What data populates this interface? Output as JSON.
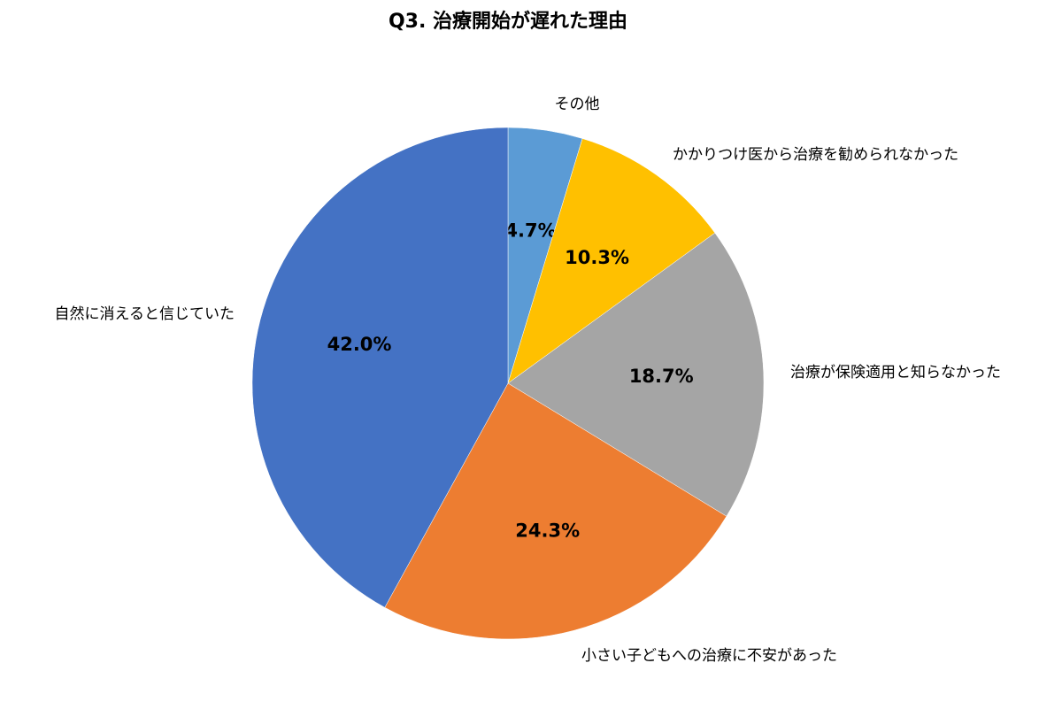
{
  "chart_data": {
    "type": "pie",
    "title": "Q3. 治療開始が遅れた理由",
    "categories": [
      "その他",
      "かかりつけ医から治療を勧められなかった",
      "治療が保険適用と知らなかった",
      "小さい子どもへの治療に不安があった",
      "自然に消えると信じていた"
    ],
    "values": [
      4.7,
      10.3,
      18.7,
      24.3,
      42.0
    ],
    "value_labels": [
      "4.7%",
      "10.3%",
      "18.7%",
      "24.3%",
      "42.0%"
    ],
    "colors": [
      "#5b9bd5",
      "#ffc000",
      "#a5a5a5",
      "#ed7d31",
      "#4472c4"
    ]
  }
}
